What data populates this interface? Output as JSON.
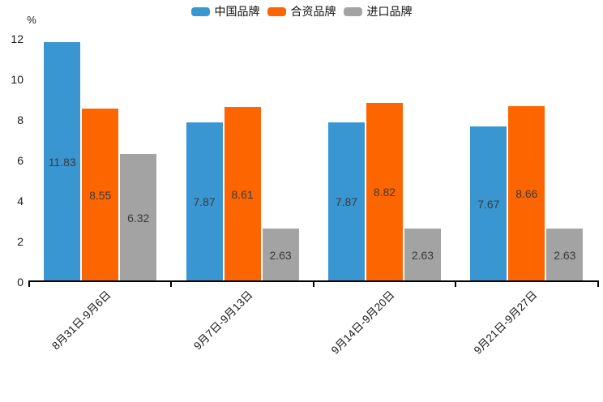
{
  "chart_data": {
    "type": "bar",
    "title": "",
    "categories": [
      "8月31日-9月6日",
      "9月7日-9月13日",
      "9月14日-9月20日",
      "9月21日-9月27日"
    ],
    "series": [
      {
        "name": "中国品牌",
        "color": "#3996d1",
        "values": [
          11.83,
          7.87,
          7.87,
          7.67
        ]
      },
      {
        "name": "合资品牌",
        "color": "#fd6500",
        "values": [
          8.55,
          8.61,
          8.82,
          8.66
        ]
      },
      {
        "name": "进口品牌",
        "color": "#a3a3a3",
        "values": [
          6.32,
          2.63,
          2.63,
          2.63
        ]
      }
    ],
    "xlabel": "",
    "ylabel": "%",
    "ylim": [
      0,
      12
    ],
    "yticks": [
      0,
      2,
      4,
      6,
      8,
      10,
      12
    ],
    "legend_position": "top-center",
    "grid": false,
    "value_labels": "inside-center"
  },
  "colors": {
    "axis": "#000000",
    "tick_text": "#1a1a1a",
    "value_label_text": "#3b3b3b",
    "background": "#ffffff"
  }
}
